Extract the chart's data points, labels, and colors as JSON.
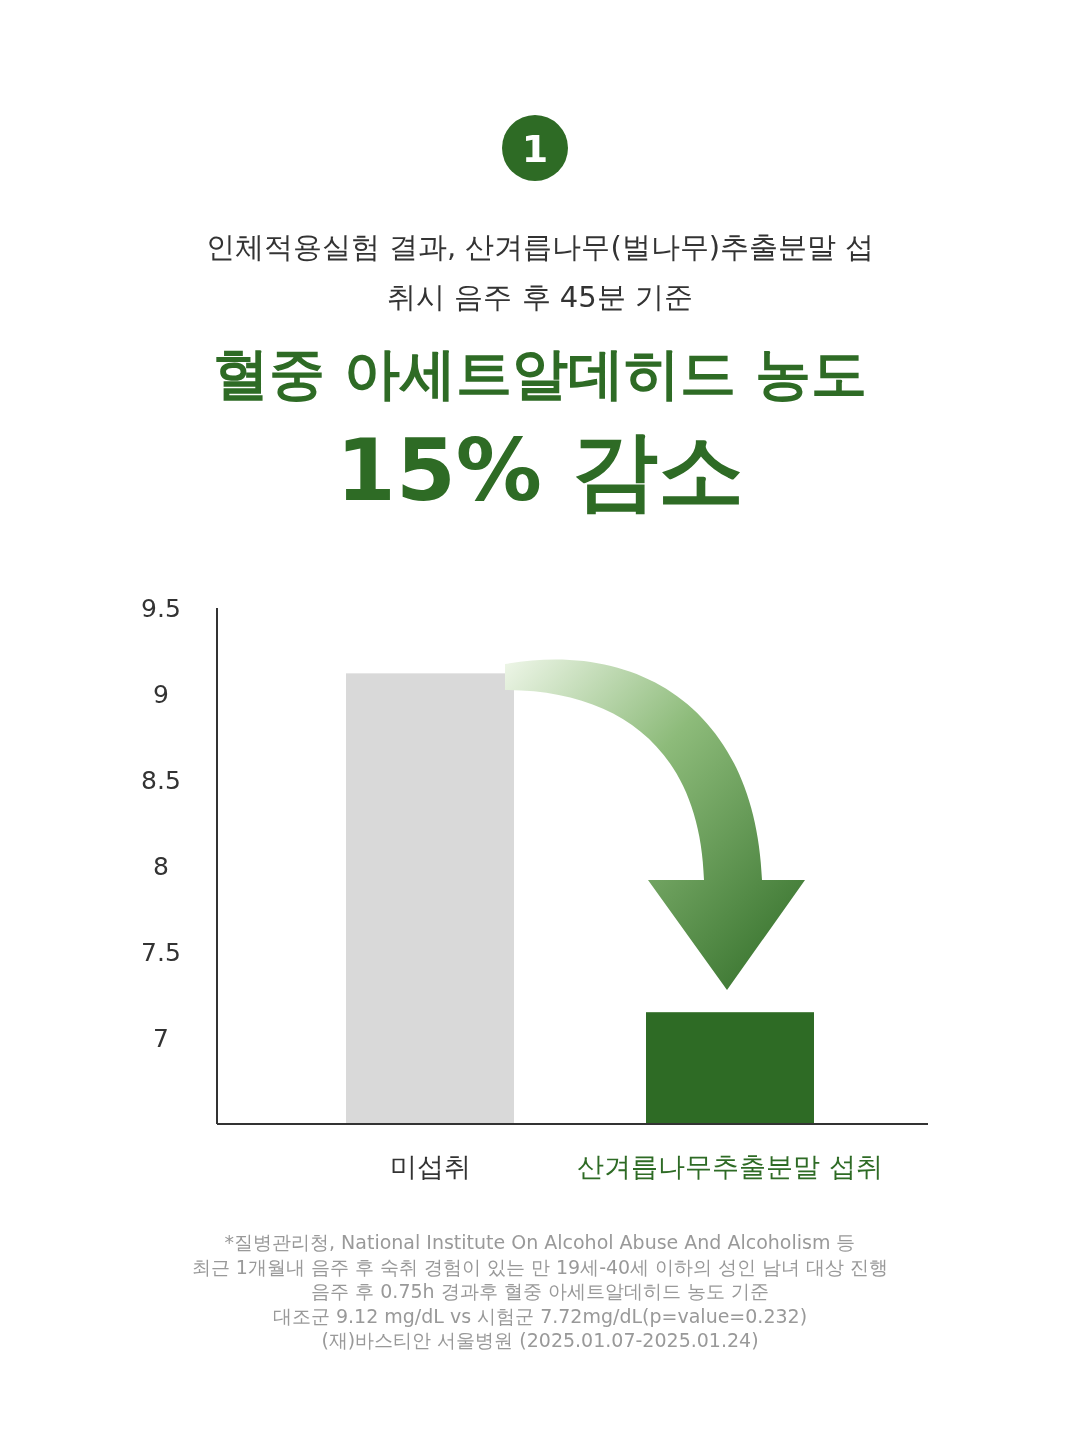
{
  "chart_data": {
    "type": "bar",
    "title": "혈중 아세트알데히드 농도",
    "subtitle": "인체적용실험 결과, 산겨릅나무(벌나무)추출분말 섭취시 음주 후 45분 기준",
    "categories": [
      "미섭취",
      "산겨릅나무추출분말 섭취"
    ],
    "values": [
      9.12,
      7.15
    ],
    "colors": [
      "#d9d9d9",
      "#2e6b25"
    ],
    "ylim": [
      6.5,
      9.5
    ],
    "yticks": [
      7,
      7.5,
      8,
      8.5,
      9,
      9.5
    ],
    "grid": false,
    "annotations": [
      "1",
      "15% 감소",
      "*질병관리청, National Institute On Alcohol Abuse And Alcoholism 등",
      "최근 1개월내 음주 후 숙취 경험이 있는 만 19세-40세 이하의 성인 남녀 대상 진행",
      "음주 후 0.75h 경과후 혈중 아세트알데히드 농도 기준",
      "대조군 9.12 mg/dL vs 시험군 7.72mg/dL(p=value=0.232)",
      "(재)바스티안 서울병원 (2025.01.07-2025.01.24)"
    ]
  }
}
